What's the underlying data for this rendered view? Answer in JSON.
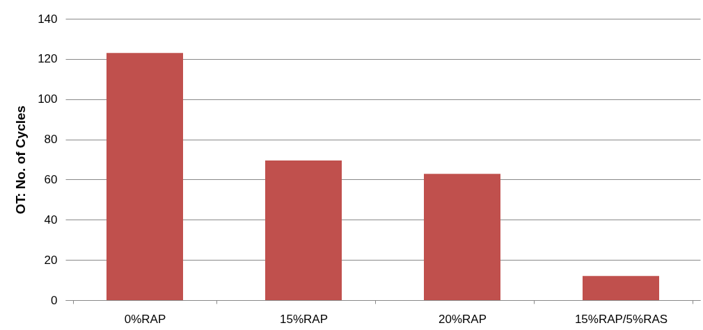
{
  "chart_data": {
    "type": "bar",
    "ylabel": "OT: No. of Cycles",
    "categories": [
      "0%RAP",
      "15%RAP",
      "20%RAP",
      "15%RAP/5%RAS"
    ],
    "values": [
      123,
      69.5,
      62.8,
      12
    ],
    "color": "#c0504d",
    "ylim": [
      0,
      140
    ],
    "yticks": [
      0,
      20,
      40,
      60,
      80,
      100,
      120,
      140
    ],
    "grid": "y"
  }
}
